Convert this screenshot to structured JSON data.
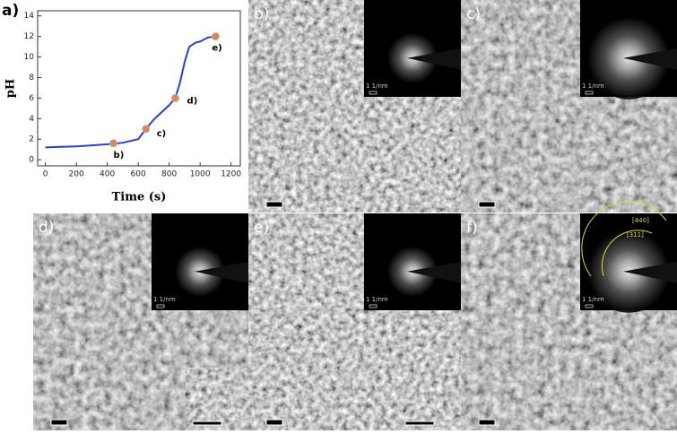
{
  "chart_data": {
    "type": "line",
    "panel_label": "a)",
    "xlabel": "Time (s)",
    "ylabel": "pH",
    "x": [
      0,
      100,
      200,
      300,
      400,
      440,
      500,
      600,
      650,
      700,
      750,
      800,
      840,
      870,
      900,
      930,
      970,
      1000,
      1050,
      1100
    ],
    "values": [
      1.2,
      1.25,
      1.3,
      1.4,
      1.5,
      1.55,
      1.65,
      2.0,
      3.0,
      3.9,
      4.6,
      5.3,
      6.0,
      7.5,
      9.5,
      11.0,
      11.4,
      11.5,
      11.9,
      12.0
    ],
    "color": "#2a3fd0",
    "markers": {
      "x": [
        440,
        650,
        840,
        1100
      ],
      "values": [
        1.6,
        3,
        6,
        12
      ],
      "labels": [
        "b)",
        "c)",
        "d)",
        "e)"
      ],
      "color": "#e8834a"
    },
    "xlim": [
      -50,
      1260
    ],
    "ylim": [
      -0.6,
      14.5
    ],
    "xticks": [
      0,
      200,
      400,
      600,
      800,
      1000,
      1200
    ],
    "yticks": [
      0,
      2,
      4,
      6,
      8,
      10,
      12,
      14
    ]
  },
  "panels": [
    {
      "label": "b)",
      "scale": "1 1/nm"
    },
    {
      "label": "c)",
      "scale": "1 1/nm"
    },
    {
      "label": "d)",
      "scale": "1 1/nm"
    },
    {
      "label": "e)",
      "scale": "1 1/nm"
    },
    {
      "label": "f)",
      "scale": "1 1/nm"
    }
  ],
  "rings": [
    "[440]",
    "[311]"
  ]
}
